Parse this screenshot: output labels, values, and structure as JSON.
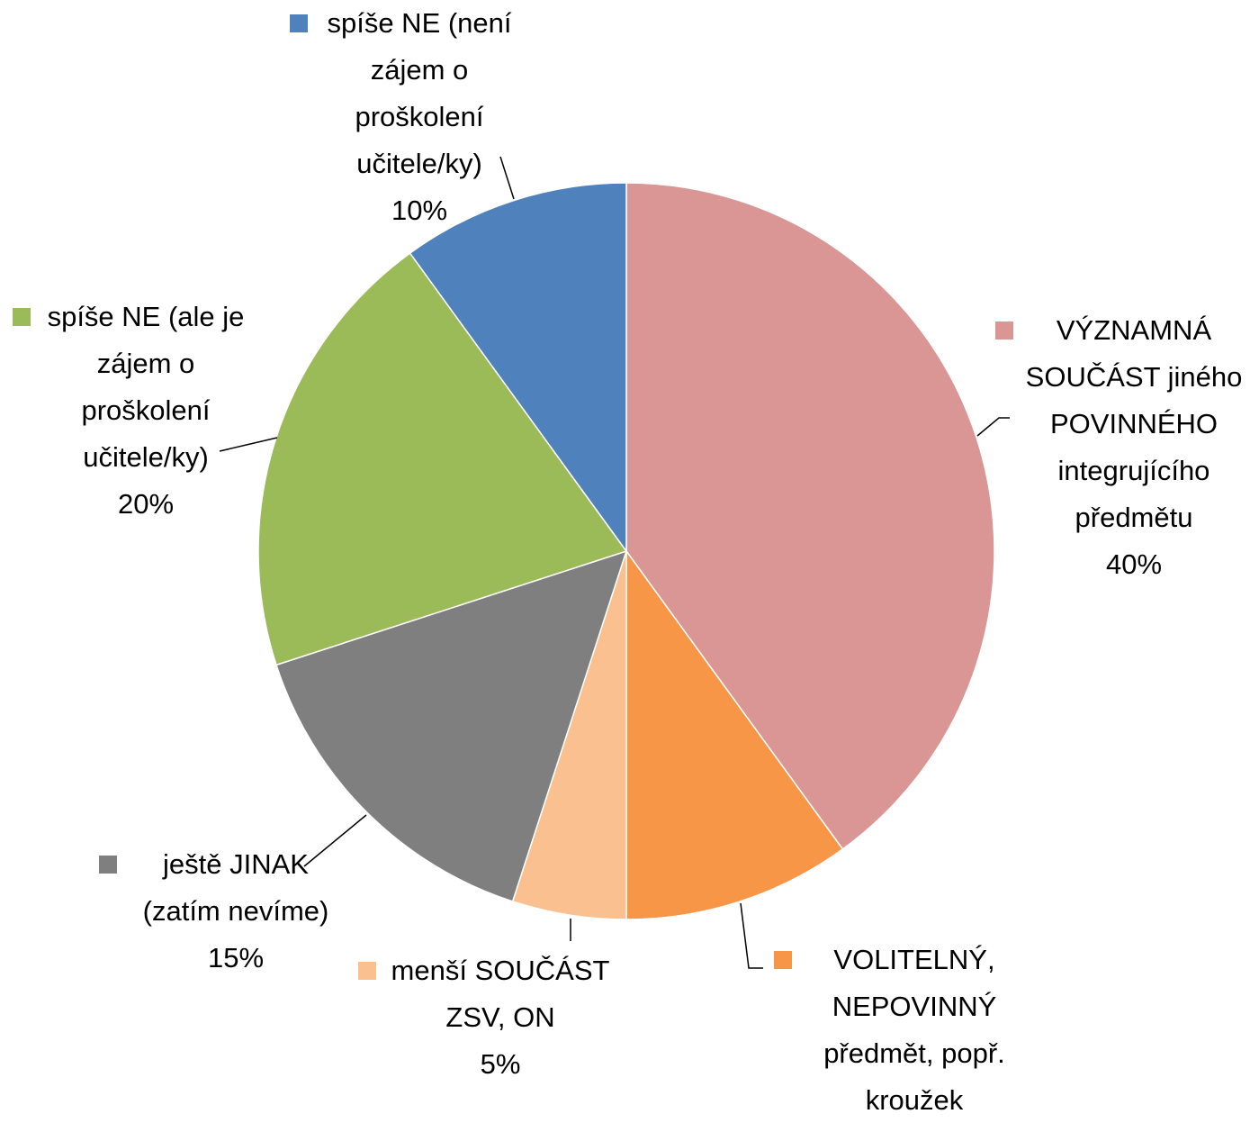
{
  "chart_data": {
    "type": "pie",
    "start_angle": "12 o'clock",
    "direction": "clockwise",
    "show_labels": "category name and percentage",
    "slices": [
      {
        "label": "VÝZNAMNÁ SOUČÁST jiného POVINNÉHO integrujícího předmětu",
        "label_lines": [
          "VÝZNAMNÁ",
          "SOUČÁST jiného",
          "POVINNÉHO",
          "integrujícího",
          "předmětu"
        ],
        "value": 40,
        "value_label": "40%",
        "color": "#D99694"
      },
      {
        "label": "VOLITELNÝ, NEPOVINNÝ předmět, popř. kroužek",
        "label_lines": [
          "VOLITELNÝ,",
          "NEPOVINNÝ",
          "předmět, popř.",
          "kroužek"
        ],
        "value": 10,
        "value_label": "10%",
        "color": "#F79646"
      },
      {
        "label": "menší SOUČÁST ZSV, ON",
        "label_lines": [
          "menší SOUČÁST",
          "ZSV, ON"
        ],
        "value": 5,
        "value_label": "5%",
        "color": "#FAC090"
      },
      {
        "label": "ještě JINAK (zatím nevíme)",
        "label_lines": [
          "ještě JINAK",
          "(zatím nevíme)"
        ],
        "value": 15,
        "value_label": "15%",
        "color": "#7F7F7F"
      },
      {
        "label": "spíše NE (ale je zájem o proškolení učitele/ky)",
        "label_lines": [
          "spíše NE (ale je",
          "zájem o",
          "proškolení",
          "učitele/ky)"
        ],
        "value": 20,
        "value_label": "20%",
        "color": "#9BBB59"
      },
      {
        "label": "spíše NE (není zájem o proškolení učitele/ky)",
        "label_lines": [
          "spíše NE (není",
          "zájem o",
          "proškolení",
          "učitele/ky)"
        ],
        "value": 10,
        "value_label": "10%",
        "color": "#4F81BD"
      }
    ]
  }
}
